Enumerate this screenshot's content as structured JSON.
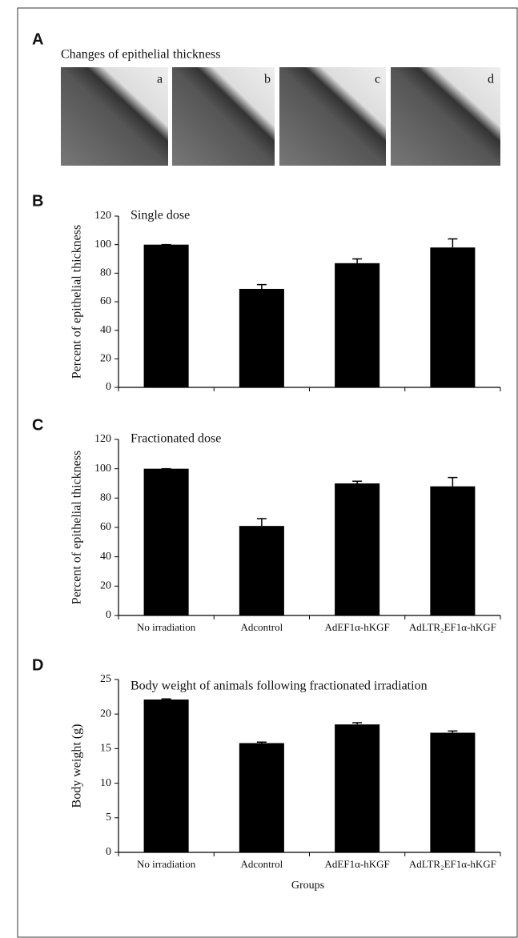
{
  "panel_labels": [
    "A",
    "B",
    "C",
    "D"
  ],
  "panel_a": {
    "title": "Changes of epithelial thickness",
    "images": [
      "a",
      "b",
      "c",
      "d"
    ]
  },
  "chart_data": [
    {
      "type": "bar",
      "title": "Single dose",
      "ylabel": "Percent of epithelial thickness",
      "categories": [
        null,
        null,
        null,
        null
      ],
      "values": [
        100,
        69,
        87,
        98
      ],
      "errors": [
        0,
        3,
        3,
        6
      ],
      "color": "#000000",
      "ylim": [
        0,
        120
      ],
      "yticks": [
        0,
        20,
        40,
        60,
        80,
        100,
        120
      ]
    },
    {
      "type": "bar",
      "title": "Fractionated dose",
      "ylabel": "Percent of epithelial thickness",
      "categories": [
        "No irradiation",
        "Adcontrol",
        "AdEF1α-hKGF",
        "AdLTR₂EF1α-hKGF"
      ],
      "values": [
        100,
        61,
        90,
        88
      ],
      "errors": [
        0,
        5,
        1.5,
        6
      ],
      "color": "#000000",
      "ylim": [
        0,
        120
      ],
      "yticks": [
        0,
        20,
        40,
        60,
        80,
        100,
        120
      ]
    },
    {
      "type": "bar",
      "title": "Body weight of animals following fractionated irradiation",
      "ylabel": "Body weight (g)",
      "xlabel": "Groups",
      "categories": [
        "No irradiation",
        "Adcontrol",
        "AdEF1α-hKGF",
        "AdLTR₂EF1α-hKGF"
      ],
      "values": [
        22.1,
        15.8,
        18.5,
        17.3
      ],
      "errors": [
        0.1,
        0.15,
        0.25,
        0.25
      ],
      "color": "#000000",
      "ylim": [
        0,
        25
      ],
      "yticks": [
        0,
        5,
        10,
        15,
        20,
        25
      ]
    }
  ]
}
